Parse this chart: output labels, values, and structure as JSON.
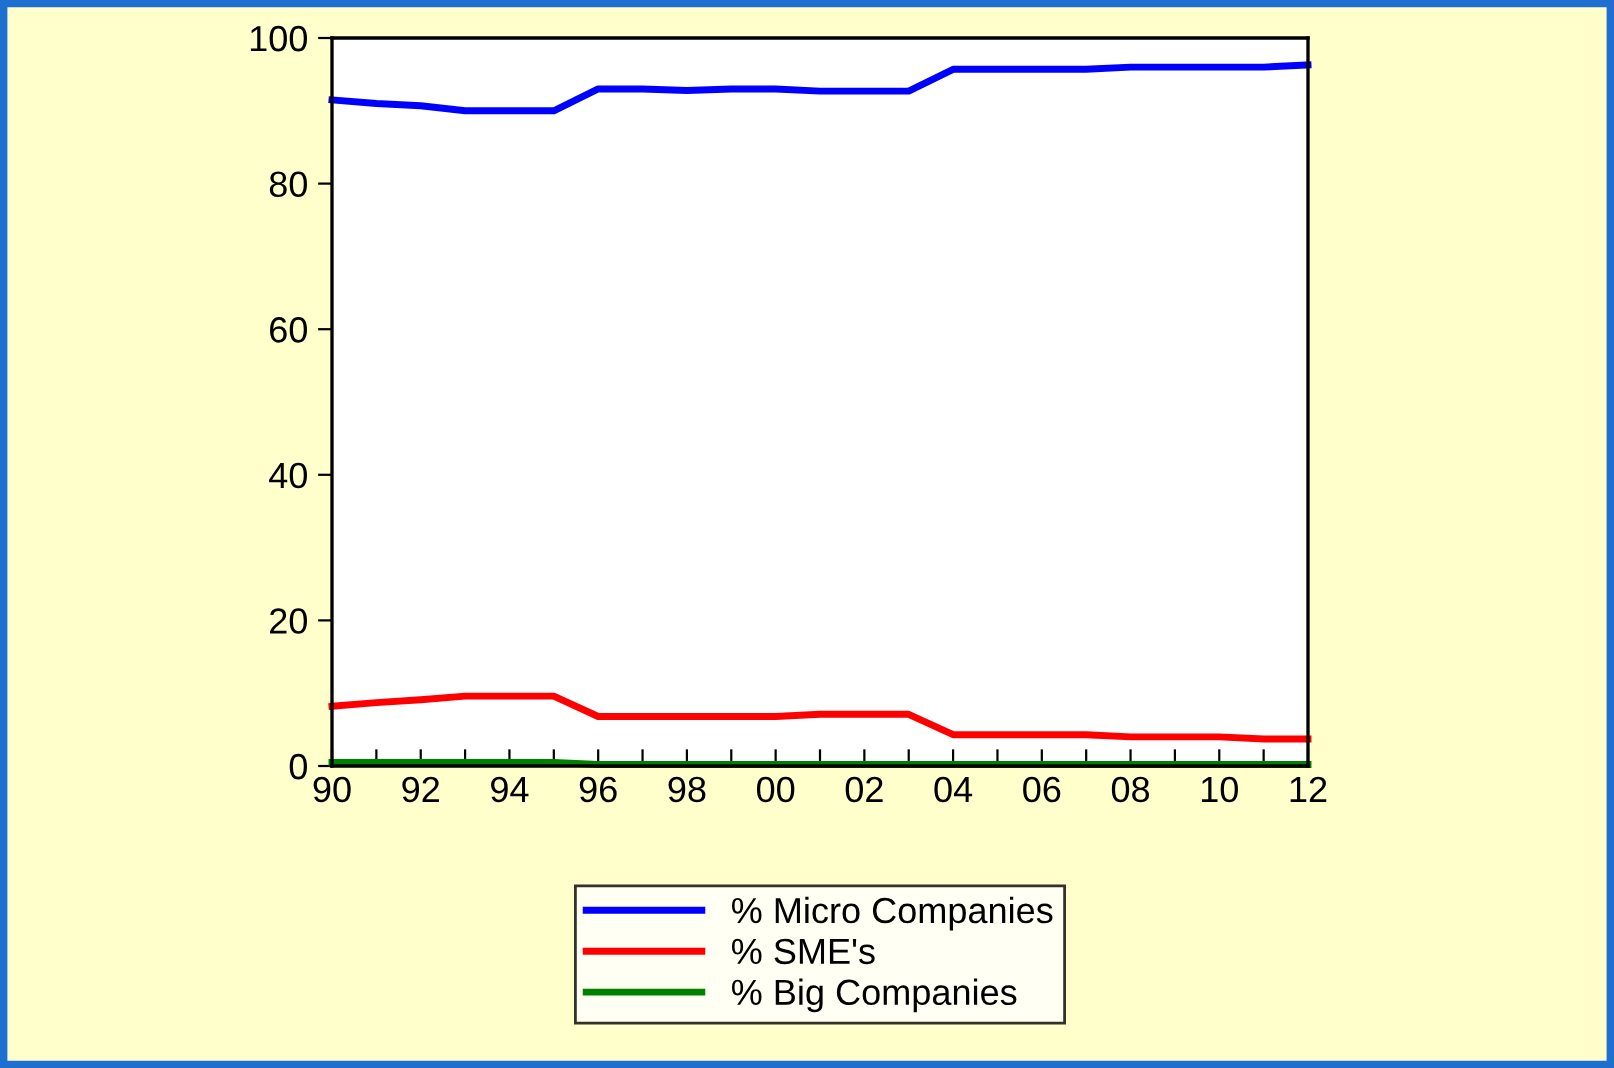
{
  "chart_data": {
    "type": "line",
    "x": [
      1990,
      1991,
      1992,
      1993,
      1994,
      1995,
      1996,
      1997,
      1998,
      1999,
      2000,
      2001,
      2002,
      2003,
      2004,
      2005,
      2006,
      2007,
      2008,
      2009,
      2010,
      2011,
      2012
    ],
    "series": [
      {
        "name": "% Micro Companies",
        "color": "#0000ff",
        "values": [
          91.5,
          91,
          90.7,
          90,
          90,
          90,
          93,
          93,
          92.8,
          93,
          93,
          92.7,
          92.7,
          92.7,
          95.7,
          95.7,
          95.7,
          95.7,
          96,
          96,
          96,
          96,
          96.3
        ]
      },
      {
        "name": "% SME's",
        "color": "#ff0000",
        "values": [
          8.2,
          8.7,
          9.1,
          9.6,
          9.6,
          9.6,
          6.8,
          6.8,
          6.8,
          6.8,
          6.8,
          7.1,
          7.1,
          7.1,
          4.3,
          4.3,
          4.3,
          4.3,
          4.0,
          4.0,
          4.0,
          3.7,
          3.7
        ]
      },
      {
        "name": "% Big Companies",
        "color": "#008000",
        "values": [
          0.5,
          0.5,
          0.5,
          0.5,
          0.5,
          0.5,
          0.2,
          0.2,
          0.2,
          0.2,
          0.2,
          0.2,
          0.2,
          0.2,
          0.2,
          0.2,
          0.2,
          0.2,
          0.2,
          0.2,
          0.2,
          0.2,
          0.2
        ]
      }
    ],
    "xlim": [
      1990,
      2012
    ],
    "xticks": [
      {
        "value": 1990,
        "label": "90"
      },
      {
        "value": 1991,
        "label": null
      },
      {
        "value": 1992,
        "label": "92"
      },
      {
        "value": 1993,
        "label": null
      },
      {
        "value": 1994,
        "label": "94"
      },
      {
        "value": 1995,
        "label": null
      },
      {
        "value": 1996,
        "label": "96"
      },
      {
        "value": 1997,
        "label": null
      },
      {
        "value": 1998,
        "label": "98"
      },
      {
        "value": 1999,
        "label": null
      },
      {
        "value": 2000,
        "label": "00"
      },
      {
        "value": 2001,
        "label": null
      },
      {
        "value": 2002,
        "label": "02"
      },
      {
        "value": 2003,
        "label": null
      },
      {
        "value": 2004,
        "label": "04"
      },
      {
        "value": 2005,
        "label": null
      },
      {
        "value": 2006,
        "label": "06"
      },
      {
        "value": 2007,
        "label": null
      },
      {
        "value": 2008,
        "label": "08"
      },
      {
        "value": 2009,
        "label": null
      },
      {
        "value": 2010,
        "label": "10"
      },
      {
        "value": 2011,
        "label": null
      },
      {
        "value": 2012,
        "label": "12"
      }
    ],
    "ylim": [
      0,
      100
    ],
    "yticks": [
      0,
      20,
      40,
      60,
      80,
      100
    ],
    "grid": false,
    "legend": "bottom",
    "marker": "none",
    "line_style": "solid"
  }
}
